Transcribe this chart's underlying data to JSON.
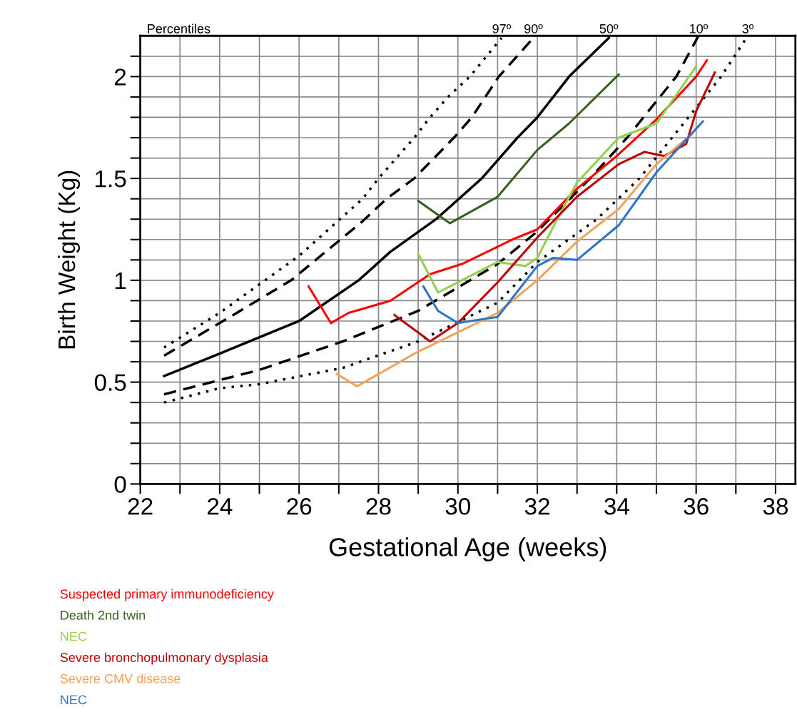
{
  "chart_data": {
    "type": "line",
    "xlabel": "Gestational Age (weeks)",
    "ylabel": "Birth Weight (Kg)",
    "annotations": [
      "Percentiles"
    ],
    "xlim": [
      22,
      38.5
    ],
    "ylim": [
      0,
      2.2
    ],
    "xticks": [
      22,
      {
        "value": 23,
        "label": null
      },
      24,
      {
        "value": 25,
        "label": null
      },
      26,
      {
        "value": 27,
        "label": null
      },
      28,
      {
        "value": 29,
        "label": null
      },
      30,
      {
        "value": 31,
        "label": null
      },
      32,
      {
        "value": 33,
        "label": null
      },
      34,
      {
        "value": 35,
        "label": null
      },
      36,
      {
        "value": 37,
        "label": null
      },
      38
    ],
    "yticks": [
      0,
      {
        "value": 0.1,
        "label": null
      },
      {
        "value": 0.2,
        "label": null
      },
      {
        "value": 0.3,
        "label": null
      },
      {
        "value": 0.4,
        "label": null
      },
      0.5,
      {
        "value": 0.6,
        "label": null
      },
      {
        "value": 0.7,
        "label": null
      },
      {
        "value": 0.8,
        "label": null
      },
      {
        "value": 0.9,
        "label": null
      },
      1,
      {
        "value": 1.1,
        "label": null
      },
      {
        "value": 1.2,
        "label": null
      },
      {
        "value": 1.3,
        "label": null
      },
      {
        "value": 1.4,
        "label": null
      },
      1.5,
      {
        "value": 1.6,
        "label": null
      },
      {
        "value": 1.7,
        "label": null
      },
      {
        "value": 1.8,
        "label": null
      },
      {
        "value": 1.9,
        "label": null
      },
      2,
      {
        "value": 2.1,
        "label": null
      }
    ],
    "grid": true,
    "legend": "bottom",
    "marker": "none",
    "series": [
      {
        "name": "97º",
        "color": "#000000",
        "line_style": "dotted",
        "x": [
          22.6,
          24,
          26,
          27.6,
          28,
          28.45,
          28.9,
          29.3,
          29.75,
          30.3,
          31.1
        ],
        "values": [
          0.67,
          0.84,
          1.12,
          1.4,
          1.5,
          1.6,
          1.7,
          1.8,
          1.9,
          2.0,
          2.19
        ]
      },
      {
        "name": "90º",
        "color": "#000000",
        "line_style": "dashed",
        "x": [
          22.6,
          24,
          25.8,
          27.6,
          28.2,
          28.9,
          29.4,
          29.9,
          30.35,
          31.03,
          31.9
        ],
        "values": [
          0.63,
          0.79,
          1.0,
          1.29,
          1.4,
          1.5,
          1.6,
          1.7,
          1.8,
          2.0,
          2.19
        ]
      },
      {
        "name": "50º",
        "color": "#000000",
        "line_style": "solid",
        "x": [
          22.6,
          24,
          26,
          27.5,
          28.3,
          29.45,
          30.6,
          31.5,
          32,
          32.8,
          33.8
        ],
        "values": [
          0.53,
          0.64,
          0.8,
          1.0,
          1.14,
          1.3,
          1.5,
          1.7,
          1.8,
          2.0,
          2.19
        ]
      },
      {
        "name": "10º",
        "color": "#000000",
        "line_style": "dashed",
        "x": [
          22.6,
          24,
          25,
          27.1,
          29,
          31,
          32,
          33.33,
          34.26,
          35.5,
          36.06
        ],
        "values": [
          0.44,
          0.51,
          0.56,
          0.7,
          0.85,
          1.08,
          1.24,
          1.5,
          1.7,
          2.0,
          2.2
        ]
      },
      {
        "name": "3º",
        "color": "#000000",
        "line_style": "dotted",
        "x": [
          22.6,
          24,
          25,
          27.1,
          29,
          31,
          32,
          33.5,
          34.57,
          36.63,
          37.3
        ],
        "values": [
          0.4,
          0.47,
          0.49,
          0.57,
          0.7,
          0.89,
          1.09,
          1.3,
          1.5,
          2.0,
          2.2
        ]
      },
      {
        "name": "Suspected primary immunodeficiency",
        "color": "#ff0000",
        "line_style": "solid",
        "x": [
          26.24,
          26.8,
          27.25,
          28.3,
          29.3,
          30.1,
          31.37,
          32,
          33,
          34,
          35,
          36,
          36.27
        ],
        "values": [
          0.97,
          0.79,
          0.84,
          0.9,
          1.03,
          1.08,
          1.2,
          1.25,
          1.45,
          1.61,
          1.79,
          2.0,
          2.08
        ]
      },
      {
        "name": "Death 2nd twin",
        "color": "#376023",
        "line_style": "solid",
        "x": [
          29.0,
          29.8,
          31.0,
          32,
          32.8,
          34.05
        ],
        "values": [
          1.39,
          1.28,
          1.41,
          1.64,
          1.77,
          2.01
        ]
      },
      {
        "name": "NEC",
        "color": "#92d050",
        "line_style": "solid",
        "x": [
          29,
          29.5,
          30.1,
          31,
          31.7,
          32,
          32.5,
          33,
          34.05,
          35,
          36
        ],
        "values": [
          1.13,
          0.94,
          1.0,
          1.09,
          1.07,
          1.11,
          1.3,
          1.48,
          1.7,
          1.77,
          2.05
        ]
      },
      {
        "name": "Severe bronchopulmonary dysplasia",
        "color": "#c00000",
        "line_style": "solid",
        "x": [
          28.4,
          29.3,
          30,
          31,
          32,
          33,
          34.05,
          34.7,
          35.2,
          35.75,
          36,
          36.47
        ],
        "values": [
          0.83,
          0.7,
          0.79,
          0.99,
          1.21,
          1.41,
          1.57,
          1.63,
          1.61,
          1.67,
          1.83,
          2.02
        ]
      },
      {
        "name": "Severe CMV disease",
        "color": "#f4a15a",
        "line_style": "solid",
        "x": [
          26.95,
          27.46,
          29,
          31,
          32,
          33,
          34.05,
          35,
          35.9
        ],
        "values": [
          0.54,
          0.48,
          0.65,
          0.84,
          1.0,
          1.19,
          1.35,
          1.57,
          1.72
        ]
      },
      {
        "name": "NEC",
        "color": "#2e75c8",
        "line_style": "solid",
        "x": [
          29.13,
          29.5,
          30,
          31,
          32,
          32.4,
          33,
          34.05,
          35,
          36.17
        ],
        "values": [
          0.97,
          0.85,
          0.79,
          0.82,
          1.07,
          1.11,
          1.1,
          1.27,
          1.53,
          1.78
        ]
      }
    ]
  }
}
